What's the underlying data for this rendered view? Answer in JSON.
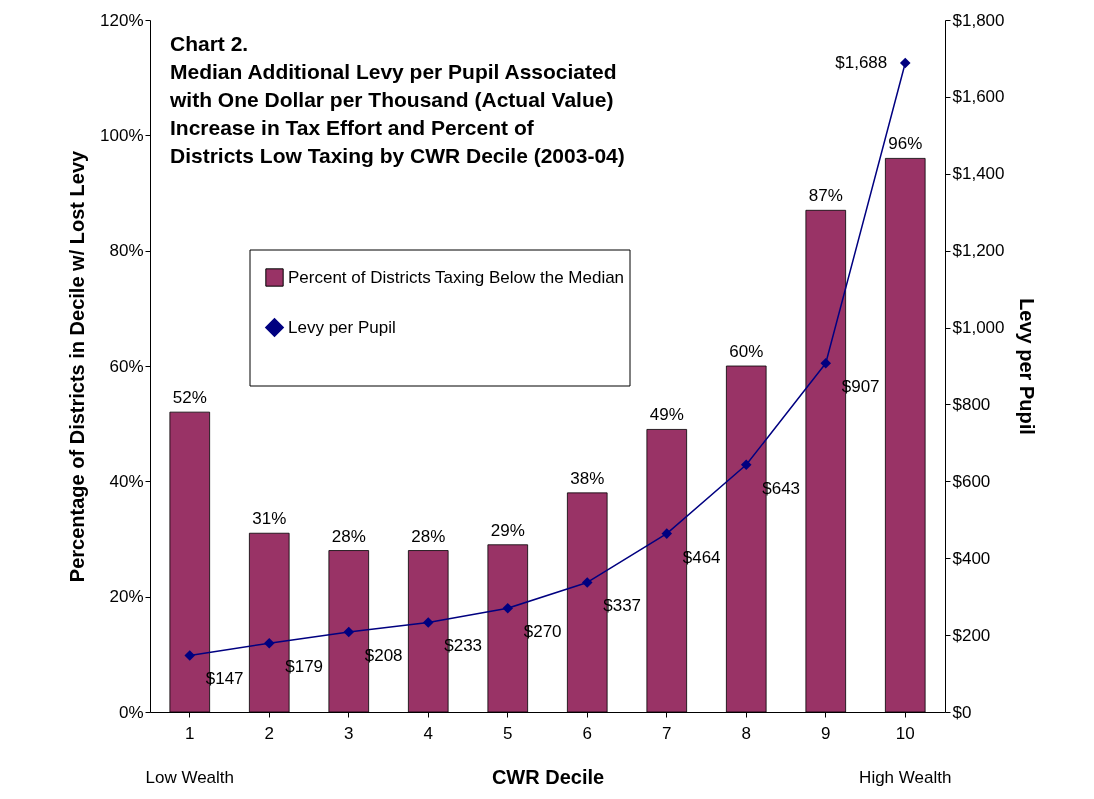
{
  "chart_data": {
    "type": "bar",
    "title": "Chart 2.",
    "subtitle": "Median Additional Levy per Pupil Associated with  One Dollar per Thousand (Actual Value) Increase in Tax Effort and Percent of Districts Low Taxing by CWR Decile (2003-04)",
    "xlabel": "CWR Decile",
    "ylabel": "Percentage of Districts in Decile w/ Lost Levy",
    "y2label": "Levy per Pupil",
    "categories": [
      "1",
      "2",
      "3",
      "4",
      "5",
      "6",
      "7",
      "8",
      "9",
      "10"
    ],
    "series": [
      {
        "name": "Percent of Districts Taxing Below the Median",
        "color": "#993366",
        "values": [
          52,
          31,
          28,
          28,
          29,
          38,
          49,
          60,
          87,
          96
        ],
        "value_labels": [
          "52%",
          "31%",
          "28%",
          "28%",
          "29%",
          "38%",
          "49%",
          "60%",
          "87%",
          "96%"
        ]
      },
      {
        "name": "Levy per Pupil",
        "type": "line",
        "axis": "y2",
        "color": "#000080",
        "values": [
          147,
          179,
          208,
          233,
          270,
          337,
          464,
          643,
          907,
          1688
        ],
        "value_labels": [
          "$147",
          "$179",
          "$208",
          "$233",
          "$270",
          "$337",
          "$464",
          "$643",
          "$907",
          "$1,688"
        ]
      }
    ],
    "ylim": [
      0,
      120
    ],
    "yticks": [
      {
        "value": 0,
        "label": "0%"
      },
      {
        "value": 20,
        "label": "20%"
      },
      {
        "value": 40,
        "label": "40%"
      },
      {
        "value": 60,
        "label": "60%"
      },
      {
        "value": 80,
        "label": "80%"
      },
      {
        "value": 100,
        "label": "100%"
      },
      {
        "value": 120,
        "label": "120%"
      }
    ],
    "y2lim": [
      0,
      1800
    ],
    "y2ticks": [
      {
        "value": 0,
        "label": "$0"
      },
      {
        "value": 200,
        "label": "$200"
      },
      {
        "value": 400,
        "label": "$400"
      },
      {
        "value": 600,
        "label": "$600"
      },
      {
        "value": 800,
        "label": "$800"
      },
      {
        "value": 1000,
        "label": "$1,000"
      },
      {
        "value": 1200,
        "label": "$1,200"
      },
      {
        "value": 1400,
        "label": "$1,400"
      },
      {
        "value": 1600,
        "label": "$1,600"
      },
      {
        "value": 1800,
        "label": "$1,800"
      }
    ],
    "annotations": [
      "Low Wealth",
      "High Wealth"
    ],
    "grid": false,
    "legend": "top left",
    "marker": "diamond",
    "line_style": "solid"
  }
}
